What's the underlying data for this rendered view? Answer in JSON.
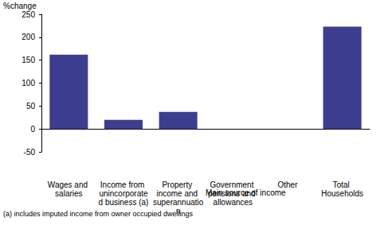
{
  "chart_data": {
    "type": "bar",
    "ylabel": "%change",
    "xlabel": "Main source of income",
    "footnote": "(a) includes imputed income from owner occupied dwellings",
    "categories": [
      "Wages and salaries",
      "Income from unincorporated business (a)",
      "Property income and superannuation",
      "Government pensions and allowances",
      "Other",
      "Total Households"
    ],
    "values": [
      162,
      20,
      37,
      null,
      null,
      223
    ],
    "color": "#3d3d8f",
    "ylim": [
      -50,
      250
    ],
    "yticks": [
      -50,
      0,
      50,
      100,
      150,
      200,
      250
    ]
  }
}
